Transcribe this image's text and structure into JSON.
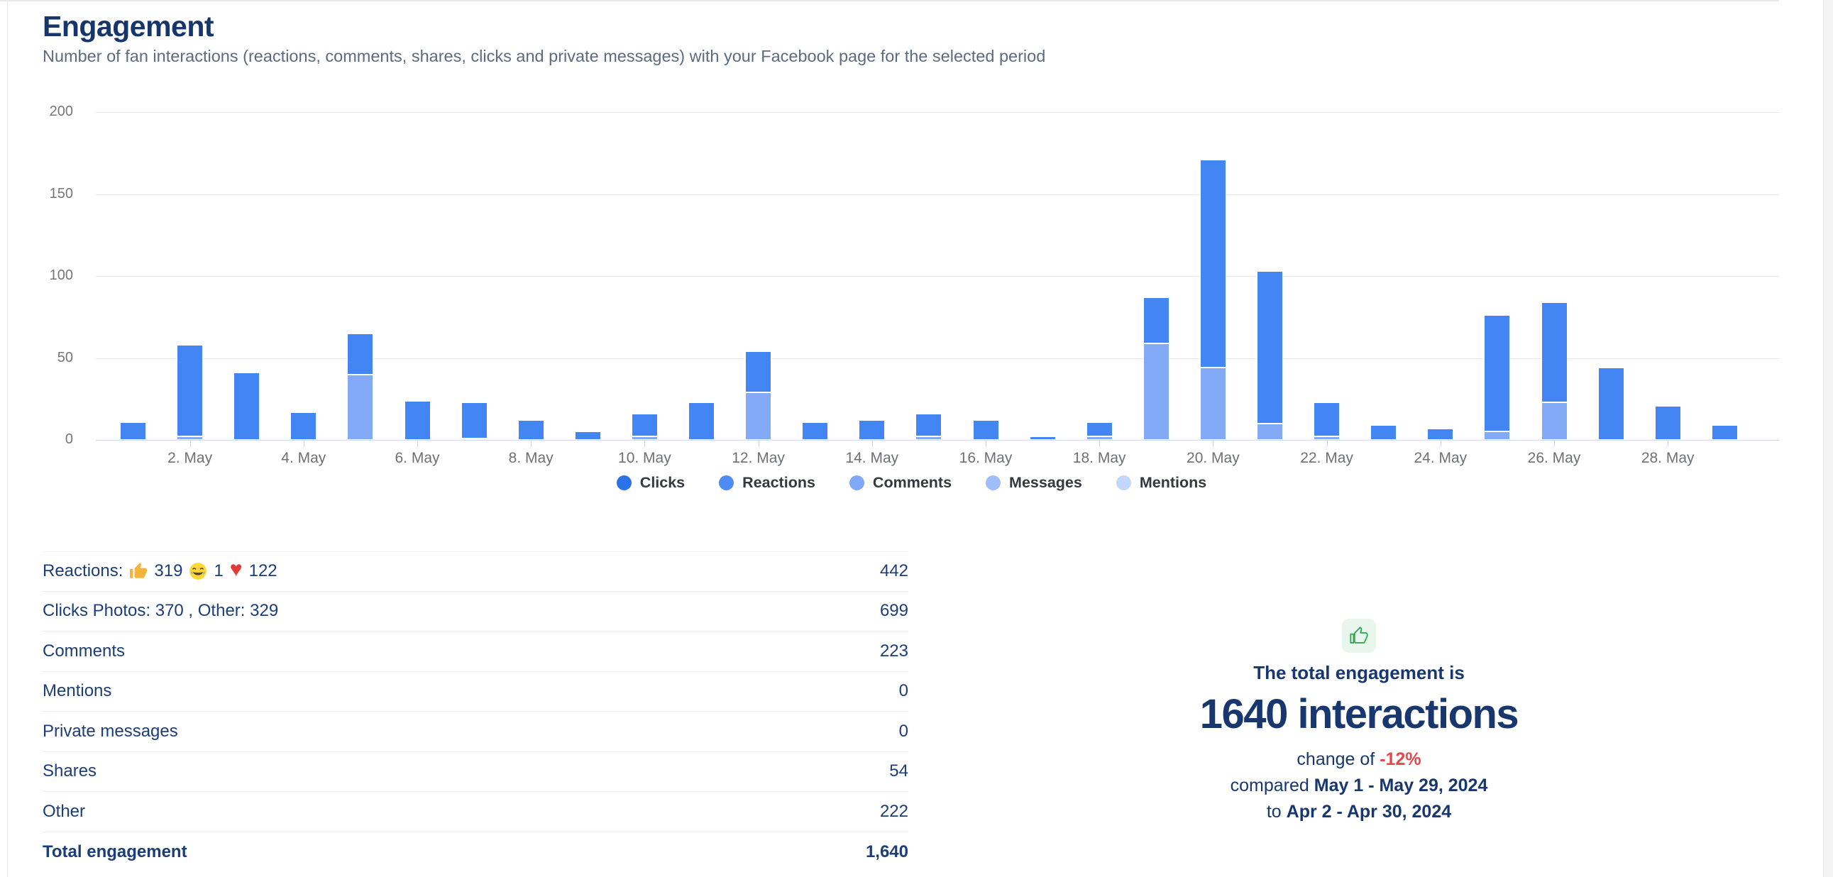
{
  "page": {
    "title": "Engagement",
    "subtitle": "Number of fan interactions (reactions, comments, shares, clicks and private messages) with your Facebook page for the selected period"
  },
  "chart_data": {
    "type": "bar",
    "stacked": true,
    "title": "",
    "xlabel": "",
    "ylabel": "",
    "ylim": [
      0,
      200
    ],
    "yticks": [
      0,
      50,
      100,
      150,
      200
    ],
    "grid": true,
    "legend_position": "bottom",
    "legend": [
      {
        "label": "Clicks",
        "color": "#2a72e8"
      },
      {
        "label": "Reactions",
        "color": "#4e8cf5"
      },
      {
        "label": "Comments",
        "color": "#7fa8f7"
      },
      {
        "label": "Messages",
        "color": "#9fbdf9"
      },
      {
        "label": "Mentions",
        "color": "#c3d6fb"
      }
    ],
    "categories": [
      "1. May",
      "2. May",
      "3. May",
      "4. May",
      "5. May",
      "6. May",
      "7. May",
      "8. May",
      "9. May",
      "10. May",
      "11. May",
      "12. May",
      "13. May",
      "14. May",
      "15. May",
      "16. May",
      "17. May",
      "18. May",
      "19. May",
      "20. May",
      "21. May",
      "22. May",
      "23. May",
      "24. May",
      "25. May",
      "26. May",
      "27. May",
      "28. May",
      "29. May"
    ],
    "x_tick_labels": [
      "2. May",
      "4. May",
      "6. May",
      "8. May",
      "10. May",
      "12. May",
      "14. May",
      "16. May",
      "18. May",
      "20. May",
      "22. May",
      "24. May",
      "26. May",
      "28. May"
    ],
    "series": [
      {
        "name": "Comments (light bottom segment)",
        "color": "#82aaf7",
        "values": [
          0,
          2,
          0,
          0,
          40,
          0,
          1,
          0,
          0,
          2,
          0,
          29,
          0,
          0,
          2,
          0,
          0,
          2,
          59,
          44,
          10,
          2,
          0,
          0,
          5,
          23,
          0,
          0,
          0
        ]
      },
      {
        "name": "Reactions/Clicks (dark top segment)",
        "color": "#4385f3",
        "values": [
          11,
          56,
          41,
          17,
          25,
          24,
          22,
          12,
          5,
          14,
          23,
          25,
          11,
          12,
          14,
          12,
          2,
          9,
          28,
          127,
          93,
          21,
          9,
          7,
          71,
          61,
          44,
          21,
          9
        ]
      }
    ]
  },
  "table": {
    "reactions_row": {
      "label_prefix": "Reactions:",
      "thumbs_count": "319",
      "laugh_count": "1",
      "heart_char": "♥",
      "heart_count": "122"
    },
    "rows": [
      {
        "label": "Reactions: 👍 319 😂 1 ❤️ 122",
        "value": "442"
      },
      {
        "label": "Clicks Photos: 370 , Other: 329",
        "value": "699"
      },
      {
        "label": "Comments",
        "value": "223"
      },
      {
        "label": "Mentions",
        "value": "0"
      },
      {
        "label": "Private messages",
        "value": "0"
      },
      {
        "label": "Shares",
        "value": "54"
      },
      {
        "label": "Other",
        "value": "222"
      },
      {
        "label": "Total engagement",
        "value": "1,640"
      }
    ]
  },
  "summary": {
    "icon": "thumbs-up-icon",
    "icon_color": "#34a853",
    "heading": "The total engagement is",
    "headline": "1640 interactions",
    "change_prefix": "change of ",
    "change_value": "-12%",
    "change_color": "#e8474b",
    "compared_prefix": "compared ",
    "compared_range": "May 1 - May 29, 2024",
    "to_prefix": "to ",
    "to_range": "Apr 2 - Apr 30, 2024"
  }
}
